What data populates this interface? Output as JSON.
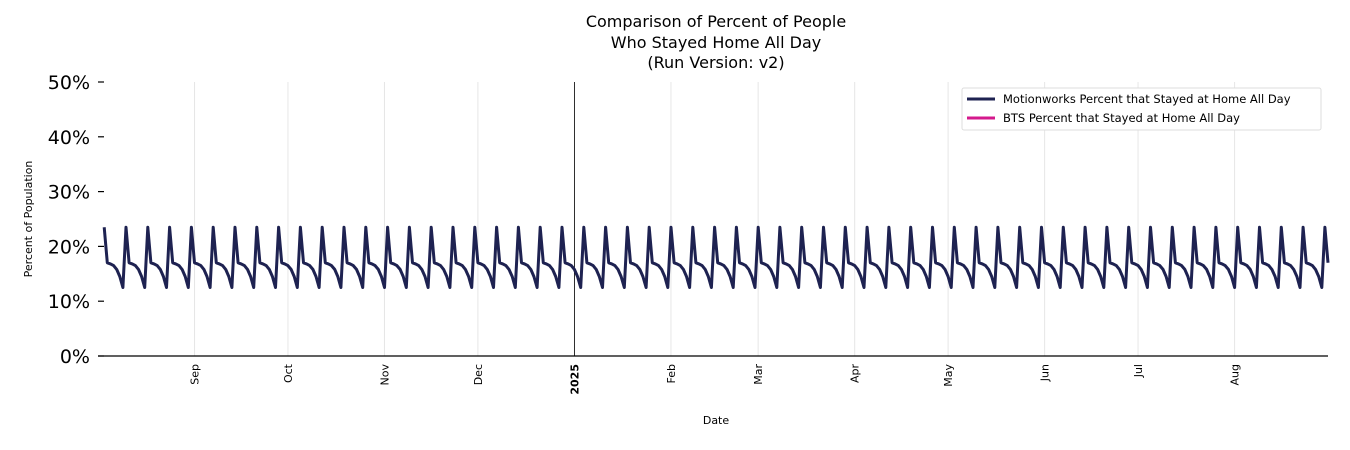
{
  "chart_data": {
    "type": "line",
    "title_lines": [
      "Comparison of Percent of People",
      "Who Stayed Home All Day",
      "(Run Version: v2)"
    ],
    "xlabel": "Date",
    "ylabel": "Percent of Population",
    "ylim": [
      0,
      0.5
    ],
    "yticks": [
      {
        "value": 0.0,
        "label": "0%"
      },
      {
        "value": 0.1,
        "label": "10%"
      },
      {
        "value": 0.2,
        "label": "20%"
      },
      {
        "value": 0.3,
        "label": "30%"
      },
      {
        "value": 0.4,
        "label": "40%"
      },
      {
        "value": 0.5,
        "label": "50%"
      }
    ],
    "x_start_date": "2024-08-01",
    "x_end_date": "2025-08-31",
    "xticks": [
      {
        "date": "2024-09-01",
        "label": "Sep",
        "bold": false
      },
      {
        "date": "2024-10-01",
        "label": "Oct",
        "bold": false
      },
      {
        "date": "2024-11-01",
        "label": "Nov",
        "bold": false
      },
      {
        "date": "2024-12-01",
        "label": "Dec",
        "bold": false
      },
      {
        "date": "2025-01-01",
        "label": "2025",
        "bold": true
      },
      {
        "date": "2025-02-01",
        "label": "Feb",
        "bold": false
      },
      {
        "date": "2025-03-01",
        "label": "Mar",
        "bold": false
      },
      {
        "date": "2025-04-01",
        "label": "Apr",
        "bold": false
      },
      {
        "date": "2025-05-01",
        "label": "May",
        "bold": false
      },
      {
        "date": "2025-06-01",
        "label": "Jun",
        "bold": false
      },
      {
        "date": "2025-07-01",
        "label": "Jul",
        "bold": false
      },
      {
        "date": "2025-08-01",
        "label": "Aug",
        "bold": false
      }
    ],
    "vline_date": "2025-01-01",
    "grid": "vertical",
    "legend_position": "top-right",
    "series": [
      {
        "name": "Motionworks Percent that Stayed at Home All Day",
        "color": "#1e2251",
        "weekly_pattern": [
          0.235,
          0.17,
          0.168,
          0.165,
          0.158,
          0.145,
          0.125
        ],
        "start_date": "2024-08-03"
      },
      {
        "name": "BTS Percent that Stayed at Home All Day",
        "color": "#d4198c",
        "weekly_pattern": [],
        "start_date": ""
      }
    ]
  }
}
